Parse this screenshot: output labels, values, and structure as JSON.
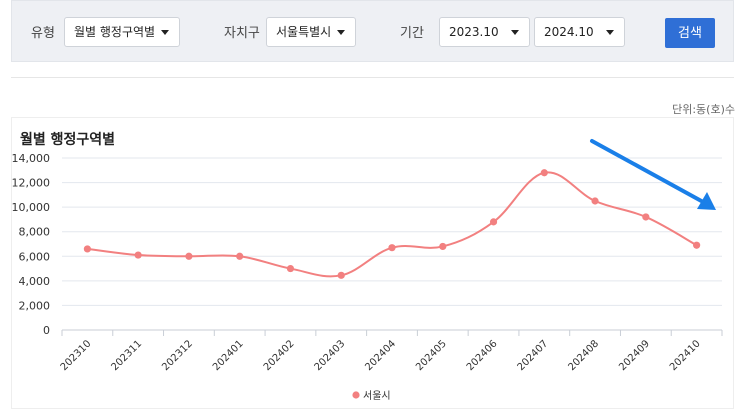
{
  "filters": {
    "type_label": "유형",
    "type_value": "월별 행정구역별",
    "district_label": "자치구",
    "district_value": "서울특별시",
    "period_label": "기간",
    "period_start": "2023.10",
    "period_end": "2024.10",
    "search_label": "검색"
  },
  "unit_text": "단위:동(호)수",
  "colors": {
    "series": "#f28080",
    "arrow": "#1a7fe8",
    "button": "#2f6fd6"
  },
  "chart_data": {
    "type": "line",
    "title": "월별 행정구역별",
    "categories": [
      "202310",
      "202311",
      "202312",
      "202401",
      "202402",
      "202403",
      "202404",
      "202405",
      "202406",
      "202407",
      "202408",
      "202409",
      "202410"
    ],
    "series": [
      {
        "name": "서울시",
        "values": [
          6600,
          6100,
          6000,
          6000,
          5000,
          4450,
          6700,
          6800,
          8800,
          12800,
          10500,
          9200,
          6900
        ]
      }
    ],
    "yticks": [
      "0",
      "2,000",
      "4,000",
      "6,000",
      "8,000",
      "10,000",
      "12,000",
      "14,000"
    ],
    "ylim": [
      0,
      14000
    ],
    "grid": true,
    "legend_position": "bottom"
  }
}
